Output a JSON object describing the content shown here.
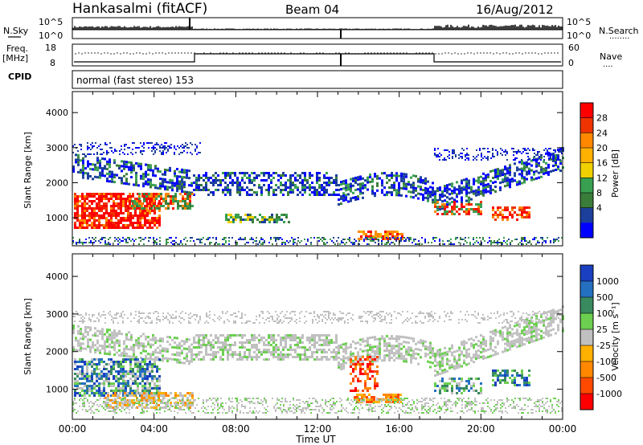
{
  "header": {
    "station": "Hankasalmi (fitACF)",
    "beam": "Beam 04",
    "date": "16/Aug/2012",
    "mode": "normal (fast stereo) 153"
  },
  "side_labels": {
    "nsky": "N.Sky",
    "nsearch": "N.Search",
    "nsearch_dots": "........",
    "freq_line1": "Freq.",
    "freq_line2": "[MHz]",
    "nave": "Nave",
    "nave_dots": "....",
    "cpid": "CPID"
  },
  "noise_axis": {
    "left_top": "10^5",
    "left_bottom": "10^0",
    "right_top": "10^5",
    "right_bottom": "10^0"
  },
  "freq_axis": {
    "left_top": "18",
    "left_bottom": "8",
    "right_top": "60",
    "right_bottom": "0"
  },
  "chart_data": [
    {
      "type": "heatmap",
      "name": "power-panel",
      "ylabel": "Slant Range [km]",
      "xlabel": "Time UT",
      "yticks": [
        "1000",
        "2000",
        "3000",
        "4000"
      ],
      "ytick_values": [
        1000,
        2000,
        3000,
        4000
      ],
      "ylim": [
        200,
        4600
      ],
      "xticks": [
        "00:00",
        "04:00",
        "08:00",
        "12:00",
        "16:00",
        "20:00",
        "00:00"
      ],
      "colorbar": {
        "title": "Power [dB]",
        "labels": [
          "28",
          "24",
          "20",
          "16",
          "12",
          "8",
          "4"
        ],
        "colors": [
          "#ff0000",
          "#ee3300",
          "#ff8800",
          "#ffb000",
          "#f0d000",
          "#38a050",
          "#3a7d3a",
          "#1b3f9a",
          "#0000ff"
        ]
      }
    },
    {
      "type": "heatmap",
      "name": "velocity-panel",
      "ylabel": "Slant Range [km]",
      "xlabel": "Time UT",
      "yticks": [
        "1000",
        "2000",
        "3000",
        "4000"
      ],
      "ytick_values": [
        1000,
        2000,
        3000,
        4000
      ],
      "ylim": [
        200,
        4600
      ],
      "xticks": [
        "00:00",
        "04:00",
        "08:00",
        "12:00",
        "16:00",
        "20:00",
        "00:00"
      ],
      "colorbar": {
        "title": "Velocity [m s⁻¹]",
        "labels": [
          "1000",
          "500",
          "100",
          "25",
          "-25",
          "-100",
          "-500",
          "-1000"
        ],
        "colors": [
          "#1a40c0",
          "#2570c0",
          "#3a8a60",
          "#6ccf50",
          "#c0c0c0",
          "#ffb000",
          "#ff8800",
          "#ff4a00",
          "#ff0000"
        ]
      }
    }
  ],
  "colors": {
    "power_scatter": [
      "#0000ff",
      "#1b3f9a",
      "#3a7d3a",
      "#38a050",
      "#f0d000",
      "#ffb000",
      "#ff8800",
      "#ee3300",
      "#ff0000"
    ],
    "velocity_gray": "#c0c0c0"
  }
}
